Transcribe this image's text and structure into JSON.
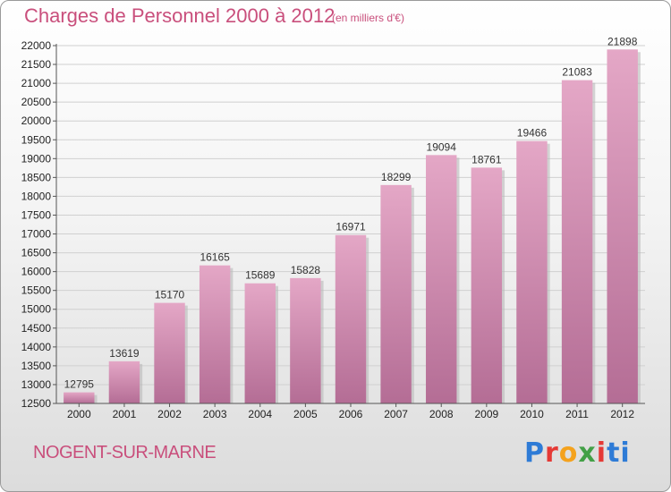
{
  "title": "Charges de Personnel 2000 à 2012",
  "unit": "(en milliers d'€)",
  "city": "NOGENT-SUR-MARNE",
  "logo": [
    "P",
    "r",
    "o",
    "x",
    "i",
    "ti"
  ],
  "colors": {
    "bar_top": "#e4a7c6",
    "bar_bottom": "#b46d95",
    "title": "#c94f7c"
  },
  "chart_data": {
    "type": "bar",
    "title": "Charges de Personnel 2000 à 2012",
    "xlabel": "",
    "ylabel": "",
    "categories": [
      "2000",
      "2001",
      "2002",
      "2003",
      "2004",
      "2005",
      "2006",
      "2007",
      "2008",
      "2009",
      "2010",
      "2011",
      "2012"
    ],
    "values": [
      12795,
      13619,
      15170,
      16165,
      15689,
      15828,
      16971,
      18299,
      19094,
      18761,
      19466,
      21083,
      21898
    ],
    "ylim": [
      12500,
      22000
    ],
    "ytick_step": 500,
    "grid": true,
    "legend": "none"
  }
}
